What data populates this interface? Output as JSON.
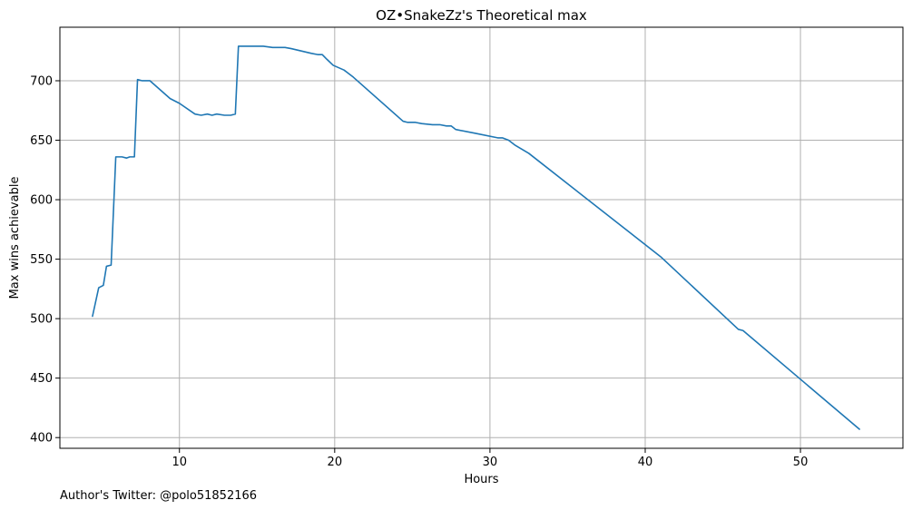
{
  "chart_data": {
    "type": "line",
    "title": "OZ•SnakeZz's Theoretical max",
    "xlabel": "Hours",
    "ylabel": "Max wins achievable",
    "xlim": [
      2.3,
      56.6
    ],
    "ylim": [
      391,
      745
    ],
    "xticks": [
      10,
      20,
      30,
      40,
      50
    ],
    "yticks": [
      400,
      450,
      500,
      550,
      600,
      650,
      700
    ],
    "grid": true,
    "series_color": "#1f77b4",
    "series": [
      {
        "x": [
          4.4,
          4.8,
          5.1,
          5.3,
          5.6,
          5.9,
          6.3,
          6.6,
          6.8,
          7.1,
          7.3,
          7.6,
          8.1,
          9.4,
          10.0,
          11.0,
          11.4,
          11.8,
          12.1,
          12.4,
          12.9,
          13.3,
          13.6,
          13.8,
          14.2,
          14.7,
          15.1,
          15.4,
          16.0,
          16.5,
          16.8,
          17.2,
          18.5,
          18.9,
          19.2,
          19.5,
          19.9,
          20.6,
          21.2,
          24.4,
          24.7,
          25.2,
          25.6,
          26.3,
          26.8,
          27.2,
          27.5,
          27.8,
          29.0,
          30.5,
          30.8,
          31.2,
          31.6,
          32.5,
          41.0,
          46.0,
          46.3,
          53.8
        ],
        "values": [
          502,
          526,
          528,
          544,
          545,
          636,
          636,
          635,
          636,
          636,
          701,
          700,
          700,
          685,
          681,
          672,
          671,
          672,
          671,
          672,
          671,
          671,
          672,
          729,
          729,
          729,
          729,
          729,
          728,
          728,
          728,
          727,
          723,
          722,
          722,
          718,
          713,
          709,
          703,
          666,
          665,
          665,
          664,
          663,
          663,
          662,
          662,
          659,
          656,
          652,
          652,
          650,
          646,
          639,
          552,
          491,
          490,
          407
        ]
      }
    ]
  },
  "footnote": "Author's Twitter: @polo51852166"
}
